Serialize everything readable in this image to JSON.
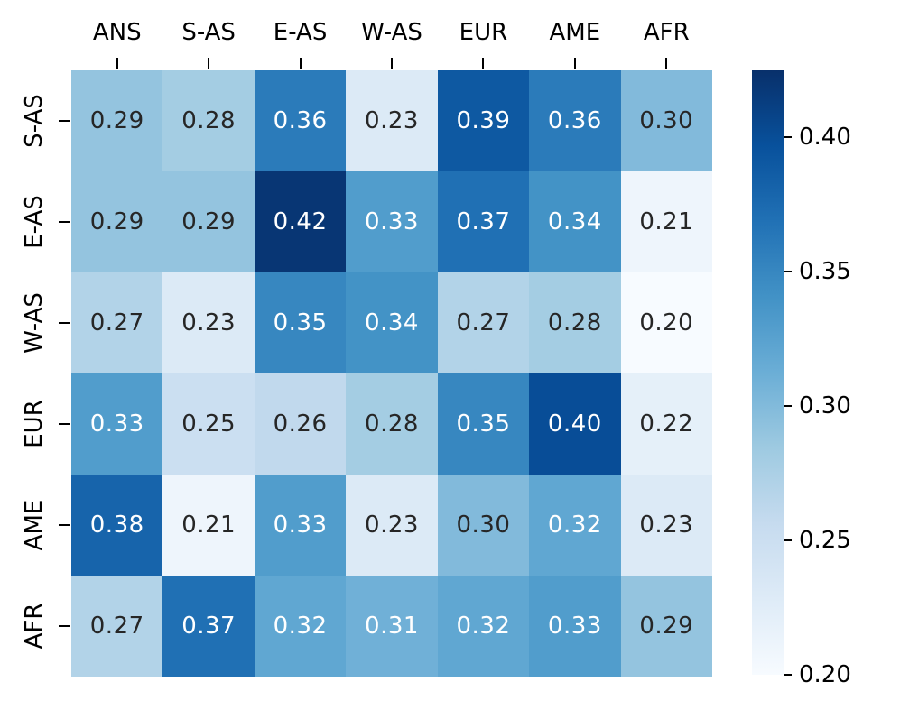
{
  "chart_data": {
    "type": "heatmap",
    "title": "",
    "columns": [
      "ANS",
      "S-AS",
      "E-AS",
      "W-AS",
      "EUR",
      "AME",
      "AFR"
    ],
    "rows": [
      "S-AS",
      "E-AS",
      "W-AS",
      "EUR",
      "AME",
      "AFR"
    ],
    "values": [
      [
        0.29,
        0.28,
        0.36,
        0.23,
        0.39,
        0.36,
        0.3
      ],
      [
        0.29,
        0.29,
        0.42,
        0.33,
        0.37,
        0.34,
        0.21
      ],
      [
        0.27,
        0.23,
        0.35,
        0.34,
        0.27,
        0.28,
        0.2
      ],
      [
        0.33,
        0.25,
        0.26,
        0.28,
        0.35,
        0.4,
        0.22
      ],
      [
        0.38,
        0.21,
        0.33,
        0.23,
        0.3,
        0.32,
        0.23
      ],
      [
        0.27,
        0.37,
        0.32,
        0.31,
        0.32,
        0.33,
        0.29
      ]
    ],
    "value_format_decimals": 2,
    "colormap": "Blues",
    "colormap_anchors": [
      "#f7fbff",
      "#deebf7",
      "#c6dbef",
      "#9ecae1",
      "#6baed6",
      "#4292c6",
      "#2171b5",
      "#08519c",
      "#08306b"
    ],
    "vmin": 0.2,
    "vmax": 0.425,
    "colorbar": {
      "position": "right",
      "tick_values": [
        0.4,
        0.35,
        0.3,
        0.25,
        0.2
      ],
      "tick_labels": [
        "0.40",
        "0.35",
        "0.30",
        "0.25",
        "0.20"
      ]
    },
    "annotation_color_dark": "#262626",
    "annotation_color_light": "#ffffff",
    "axis_text_color": "#000000",
    "background_color": "#ffffff",
    "grid": false,
    "legend_position": "right-colorbar"
  }
}
